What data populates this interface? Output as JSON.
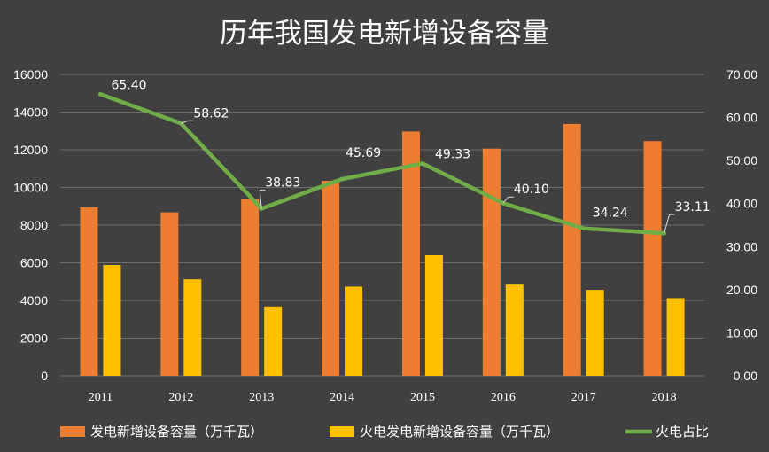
{
  "chart_data": {
    "type": "bar",
    "title": "历年我国发电新增设备容量",
    "categories": [
      "2011",
      "2012",
      "2013",
      "2014",
      "2015",
      "2016",
      "2017",
      "2018"
    ],
    "series": [
      {
        "name": "发电新增设备容量（万千瓦）",
        "type": "bar",
        "axis": "left",
        "color": "#ED7D31",
        "values": [
          8950,
          8680,
          9400,
          10350,
          12970,
          12060,
          13370,
          12460
        ]
      },
      {
        "name": "火电发电新增设备容量（万千瓦）",
        "type": "bar",
        "axis": "left",
        "color": "#FFC000",
        "values": [
          5880,
          5120,
          3680,
          4730,
          6400,
          4840,
          4560,
          4120
        ]
      },
      {
        "name": "火电占比",
        "type": "line",
        "axis": "right",
        "color": "#70AD47",
        "values": [
          65.4,
          58.62,
          38.83,
          45.69,
          49.33,
          40.1,
          34.24,
          33.11
        ],
        "labels": [
          "65.40",
          "58.62",
          "38.83",
          "45.69",
          "49.33",
          "40.10",
          "34.24",
          "33.11"
        ]
      }
    ],
    "y_left": {
      "min": 0,
      "max": 16000,
      "ticks": [
        "0",
        "2000",
        "4000",
        "6000",
        "8000",
        "10000",
        "12000",
        "14000",
        "16000"
      ]
    },
    "y_right": {
      "min": 0,
      "max": 70,
      "ticks": [
        "0.00",
        "10.00",
        "20.00",
        "30.00",
        "40.00",
        "50.00",
        "60.00",
        "70.00"
      ]
    },
    "grid": true,
    "legend_position": "bottom",
    "background": "#404040"
  }
}
